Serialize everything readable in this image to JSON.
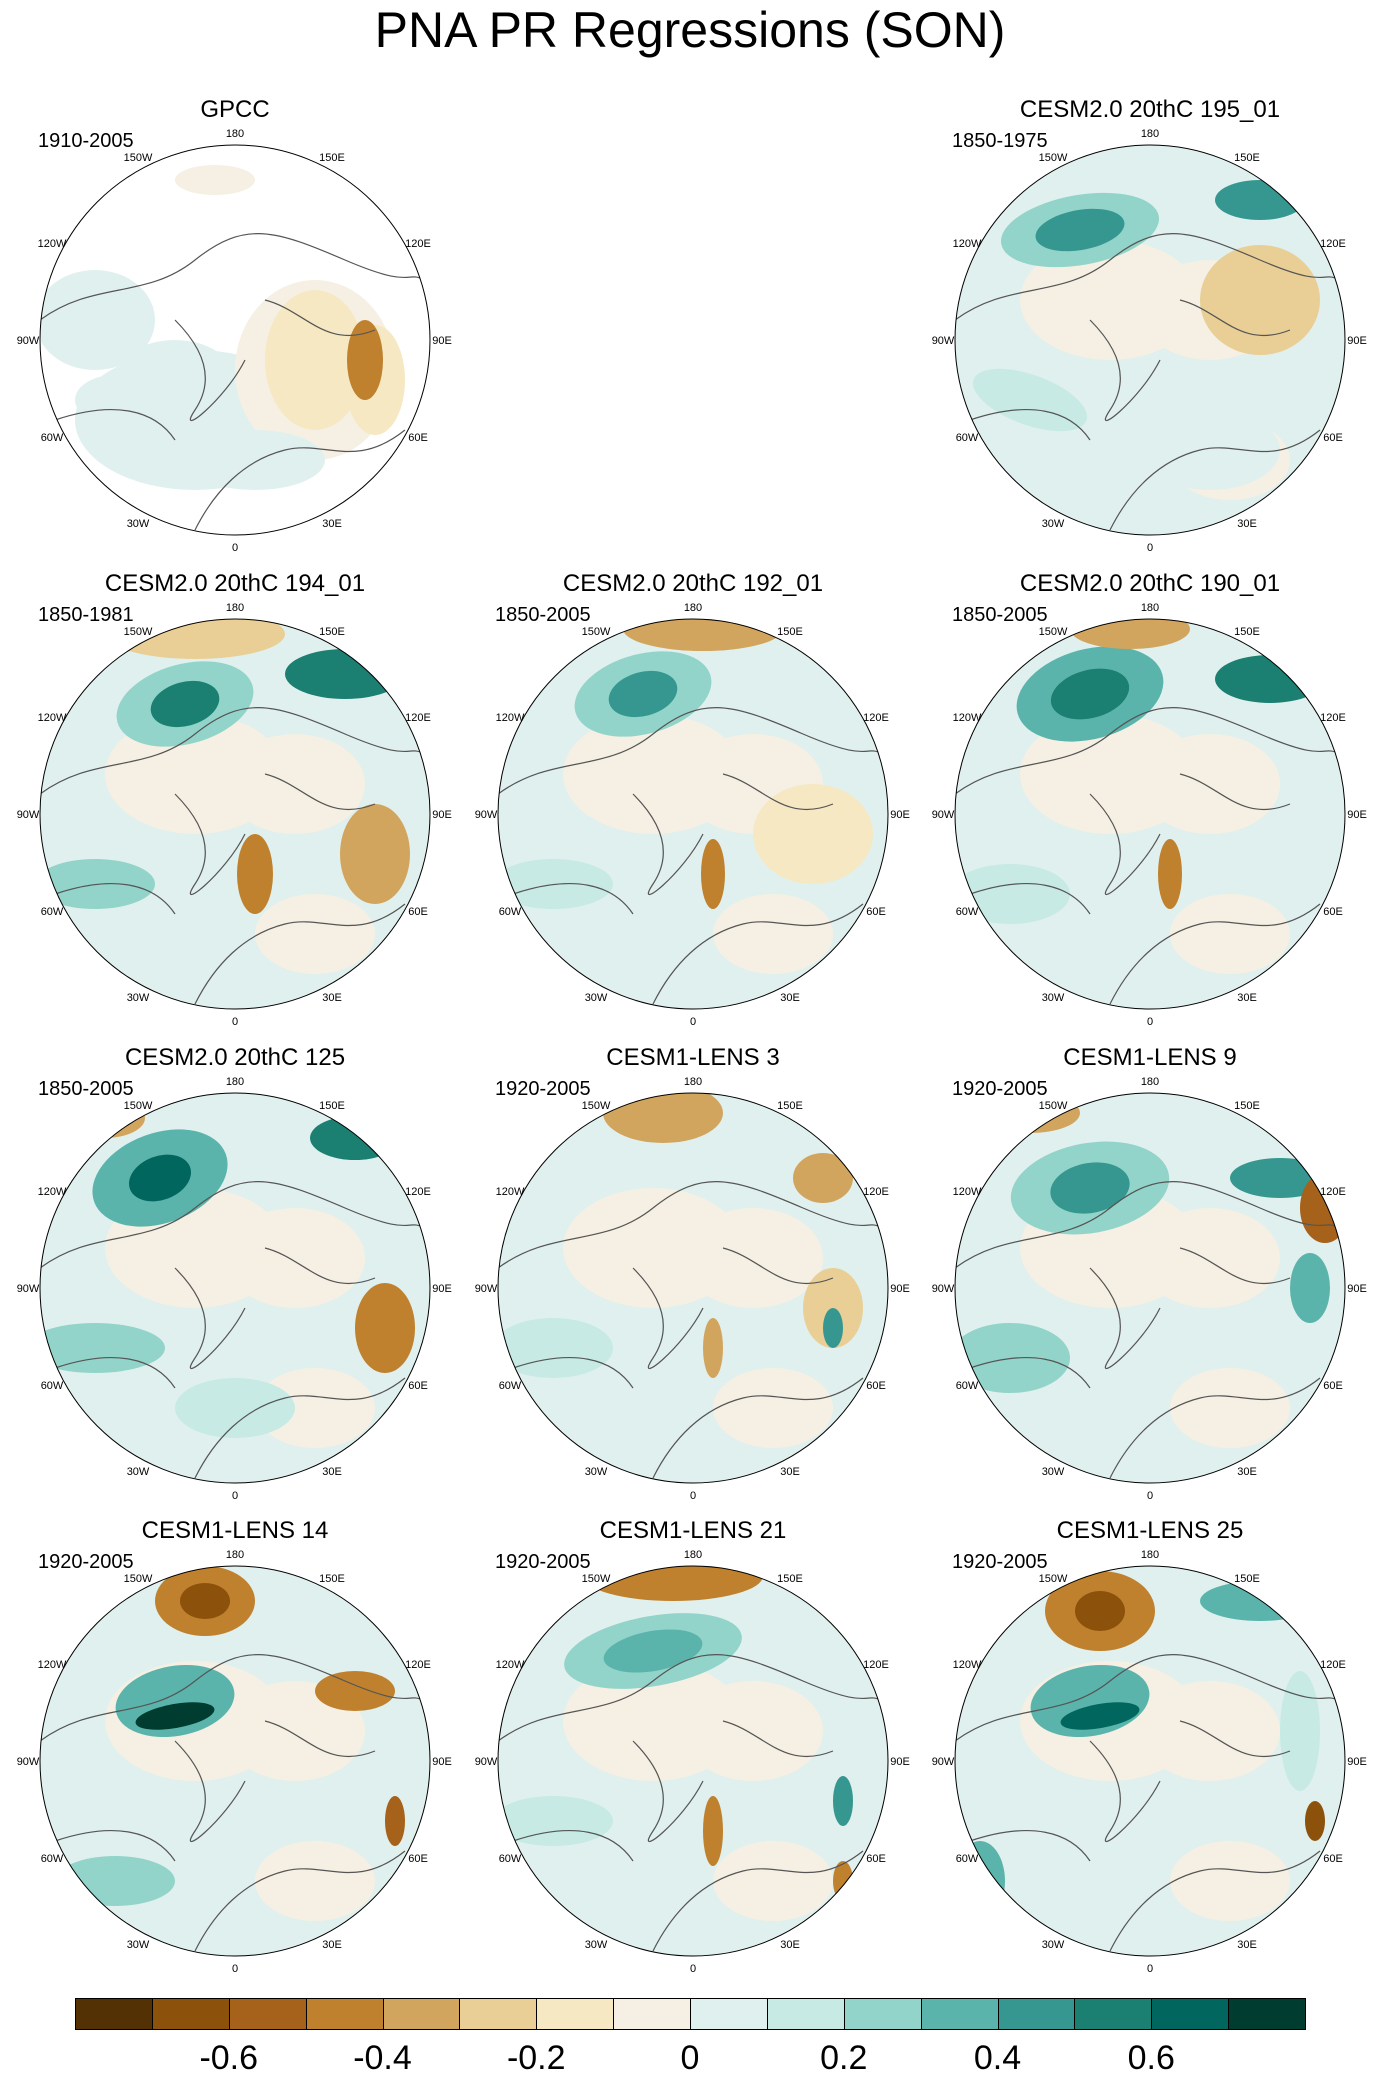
{
  "title": "PNA PR Regressions (SON)",
  "longitude_labels": [
    "180",
    "150E",
    "120E",
    "90E",
    "60E",
    "30E",
    "0",
    "30W",
    "60W",
    "90W",
    "120W",
    "150W"
  ],
  "panels": [
    {
      "id": "gpcc",
      "title": "GPCC",
      "period": "1910-2005",
      "masked": true
    },
    {
      "id": "cesm2-195",
      "title": "CESM2.0 20thC 195_01",
      "period": "1850-1975"
    },
    {
      "id": "cesm2-194",
      "title": "CESM2.0 20thC 194_01",
      "period": "1850-1981"
    },
    {
      "id": "cesm2-192",
      "title": "CESM2.0 20thC 192_01",
      "period": "1850-2005"
    },
    {
      "id": "cesm2-190",
      "title": "CESM2.0 20thC 190_01",
      "period": "1850-2005"
    },
    {
      "id": "cesm2-125",
      "title": "CESM2.0 20thC 125",
      "period": "1850-2005"
    },
    {
      "id": "lens-3",
      "title": "CESM1-LENS 3",
      "period": "1920-2005"
    },
    {
      "id": "lens-9",
      "title": "CESM1-LENS 9",
      "period": "1920-2005"
    },
    {
      "id": "lens-14",
      "title": "CESM1-LENS 14",
      "period": "1920-2005"
    },
    {
      "id": "lens-21",
      "title": "CESM1-LENS 21",
      "period": "1920-2005"
    },
    {
      "id": "lens-25",
      "title": "CESM1-LENS 25",
      "period": "1920-2005"
    }
  ],
  "colorbar": {
    "colors": [
      "#543005",
      "#8c510a",
      "#a6611a",
      "#bf812d",
      "#d2a55e",
      "#e9cf95",
      "#f6e8c3",
      "#f5f0e3",
      "#e0f0ee",
      "#c7eae5",
      "#92d4c9",
      "#5ab4ac",
      "#35978f",
      "#1b7f72",
      "#01665e",
      "#003c30"
    ],
    "labels": [
      "-0.6",
      "-0.4",
      "-0.2",
      "0",
      "0.2",
      "0.4",
      "0.6"
    ]
  },
  "colors": {
    "coast": "#555555",
    "brown": "#a6611a",
    "teal": "#01665e",
    "missing": "#ffffff"
  }
}
